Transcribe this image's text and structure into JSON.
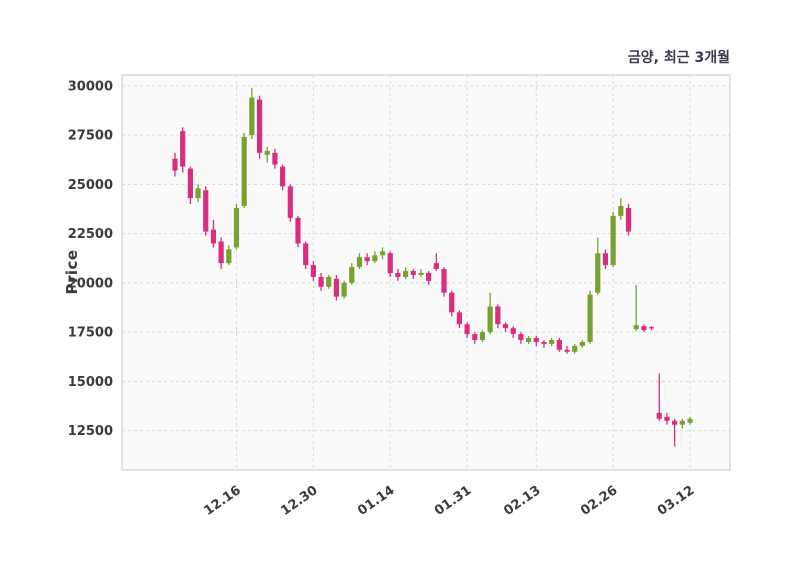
{
  "chart_data": {
    "type": "candlestick",
    "title": "금양, 최근 3개월",
    "ylabel": "Price",
    "xlabel": "",
    "grid": "dashed",
    "legend": "none",
    "y_ticks": [
      12500,
      15000,
      17500,
      20000,
      22500,
      25000,
      27500,
      30000
    ],
    "y_range": [
      10500,
      30550
    ],
    "x_tick_labels": [
      "12.16",
      "12.30",
      "01.14",
      "01.31",
      "02.13",
      "02.26",
      "03.12"
    ],
    "x_tick_indices": [
      8,
      18,
      28,
      38,
      47,
      57,
      67
    ],
    "colors": {
      "up": "#76a22e",
      "down": "#da2d7f",
      "grid": "#d9d9d9",
      "border": "#c9c9c9",
      "panel": "#fafafa",
      "tick": "#3b3b3b",
      "title": "#3a3a52"
    },
    "candles": [
      [
        26300,
        26600,
        25400,
        25700
      ],
      [
        27700,
        27900,
        25600,
        25900
      ],
      [
        25800,
        25900,
        24000,
        24300
      ],
      [
        24300,
        25000,
        24100,
        24800
      ],
      [
        24700,
        24900,
        22400,
        22600
      ],
      [
        22700,
        23200,
        21800,
        22000
      ],
      [
        22100,
        22300,
        20700,
        21000
      ],
      [
        21000,
        21900,
        20900,
        21700
      ],
      [
        21800,
        24000,
        21700,
        23800
      ],
      [
        23900,
        27600,
        23800,
        27400
      ],
      [
        27500,
        29900,
        27300,
        29400
      ],
      [
        29300,
        29500,
        26300,
        26600
      ],
      [
        26500,
        26900,
        26100,
        26700
      ],
      [
        26600,
        26800,
        25800,
        26000
      ],
      [
        25900,
        26000,
        24700,
        24900
      ],
      [
        24900,
        25000,
        23100,
        23300
      ],
      [
        23300,
        23400,
        21800,
        22000
      ],
      [
        22000,
        22100,
        20700,
        20900
      ],
      [
        20900,
        21100,
        20100,
        20300
      ],
      [
        20300,
        20500,
        19600,
        19800
      ],
      [
        19800,
        20400,
        19700,
        20300
      ],
      [
        20200,
        20400,
        19100,
        19300
      ],
      [
        19300,
        20100,
        19200,
        20000
      ],
      [
        20000,
        21000,
        19900,
        20800
      ],
      [
        20800,
        21500,
        20700,
        21300
      ],
      [
        21300,
        21500,
        20900,
        21100
      ],
      [
        21100,
        21600,
        21000,
        21400
      ],
      [
        21400,
        21800,
        21200,
        21600
      ],
      [
        21500,
        21600,
        20300,
        20500
      ],
      [
        20500,
        20700,
        20100,
        20300
      ],
      [
        20300,
        20800,
        20200,
        20600
      ],
      [
        20600,
        20700,
        20200,
        20400
      ],
      [
        20400,
        20700,
        20300,
        20500
      ],
      [
        20500,
        20600,
        19900,
        20100
      ],
      [
        21000,
        21500,
        20600,
        20700
      ],
      [
        20700,
        20800,
        19300,
        19500
      ],
      [
        19500,
        19600,
        18300,
        18500
      ],
      [
        18500,
        18600,
        17700,
        17900
      ],
      [
        17900,
        18000,
        17200,
        17400
      ],
      [
        17400,
        17500,
        16900,
        17100
      ],
      [
        17100,
        17600,
        17000,
        17500
      ],
      [
        17500,
        19500,
        17400,
        18800
      ],
      [
        18800,
        18900,
        17700,
        17900
      ],
      [
        17900,
        18000,
        17500,
        17700
      ],
      [
        17700,
        17800,
        17200,
        17400
      ],
      [
        17400,
        17500,
        16900,
        17100
      ],
      [
        17000,
        17300,
        16900,
        17200
      ],
      [
        17200,
        17300,
        16800,
        17000
      ],
      [
        17000,
        17100,
        16700,
        16900
      ],
      [
        16900,
        17200,
        16800,
        17100
      ],
      [
        17100,
        17200,
        16500,
        16600
      ],
      [
        16600,
        16800,
        16400,
        16500
      ],
      [
        16500,
        16900,
        16400,
        16800
      ],
      [
        16800,
        17100,
        16700,
        17000
      ],
      [
        17000,
        19600,
        16900,
        19400
      ],
      [
        19500,
        22300,
        19400,
        21500
      ],
      [
        21500,
        21700,
        20700,
        20900
      ],
      [
        20900,
        23600,
        20800,
        23400
      ],
      [
        23400,
        24300,
        23200,
        23900
      ],
      [
        23800,
        24000,
        22400,
        22600
      ],
      [
        17650,
        19900,
        17550,
        17850
      ],
      [
        17800,
        17900,
        17500,
        17600
      ],
      [
        17750,
        17800,
        17600,
        17700
      ],
      [
        13400,
        15400,
        13000,
        13100
      ],
      [
        13200,
        13400,
        12800,
        13000
      ],
      [
        13000,
        13100,
        11700,
        12800
      ],
      [
        12800,
        13100,
        12600,
        13000
      ],
      [
        12900,
        13200,
        12800,
        13100
      ]
    ]
  }
}
